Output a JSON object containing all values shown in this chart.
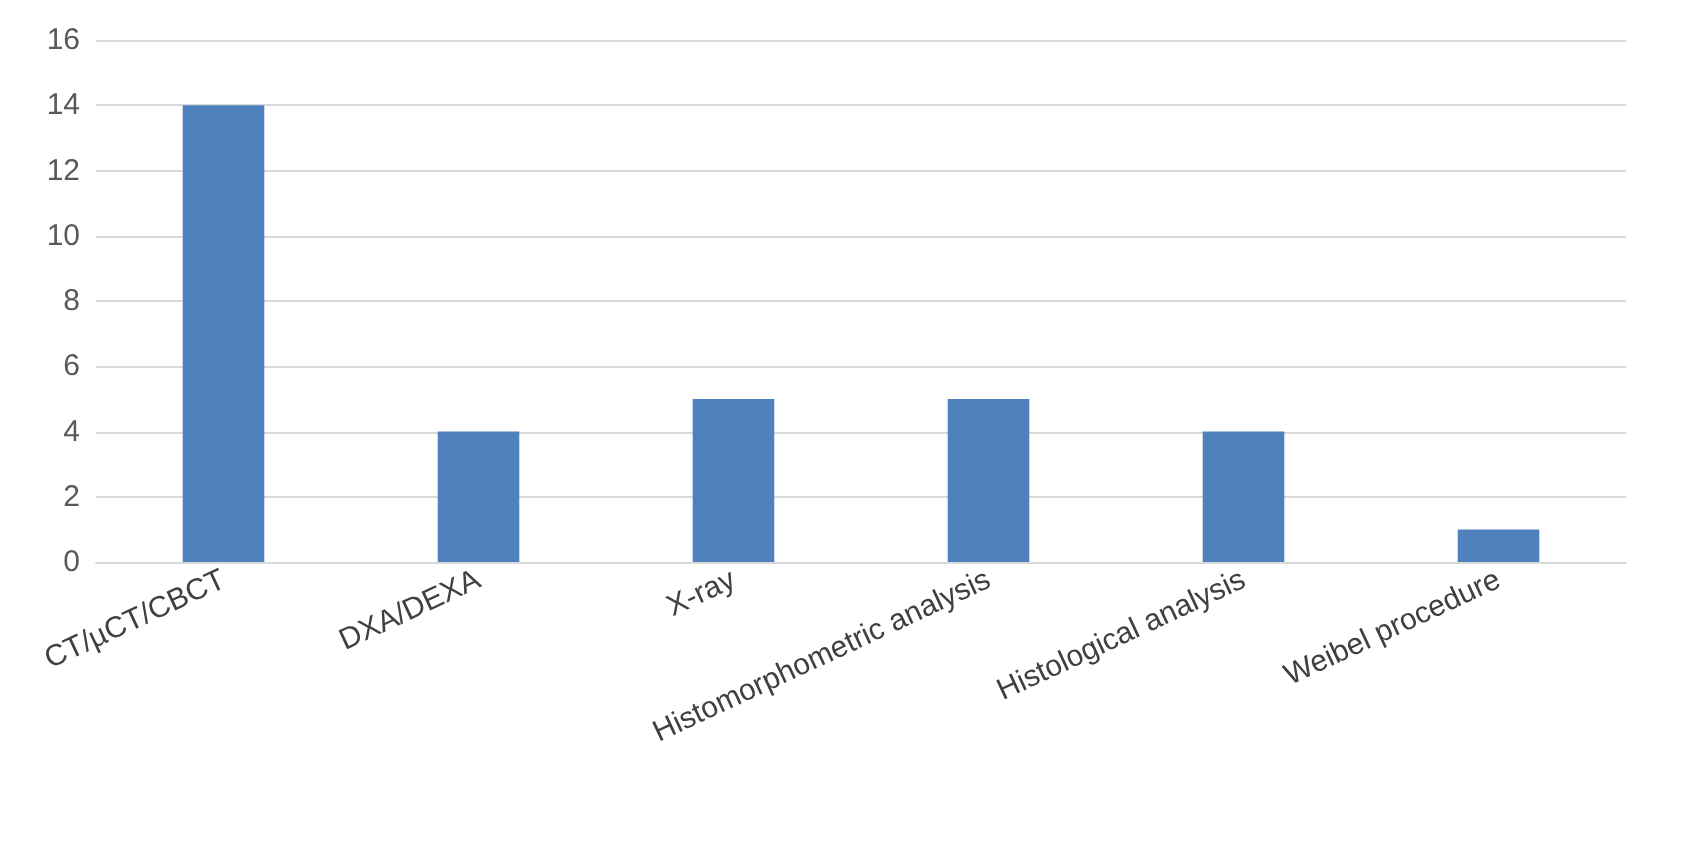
{
  "chart_data": {
    "type": "bar",
    "categories": [
      "CT/µCT/CBCT",
      "DXA/DEXA",
      "X-ray",
      "Histomorphometric analysis",
      "Histological analysis",
      "Weibel procedure"
    ],
    "values": [
      14,
      4,
      5,
      5,
      4,
      1
    ],
    "color": "#4f81bd",
    "ylim": [
      0,
      16
    ],
    "yticks": [
      0,
      2,
      4,
      6,
      8,
      10,
      12,
      14,
      16
    ],
    "grid": "y"
  }
}
